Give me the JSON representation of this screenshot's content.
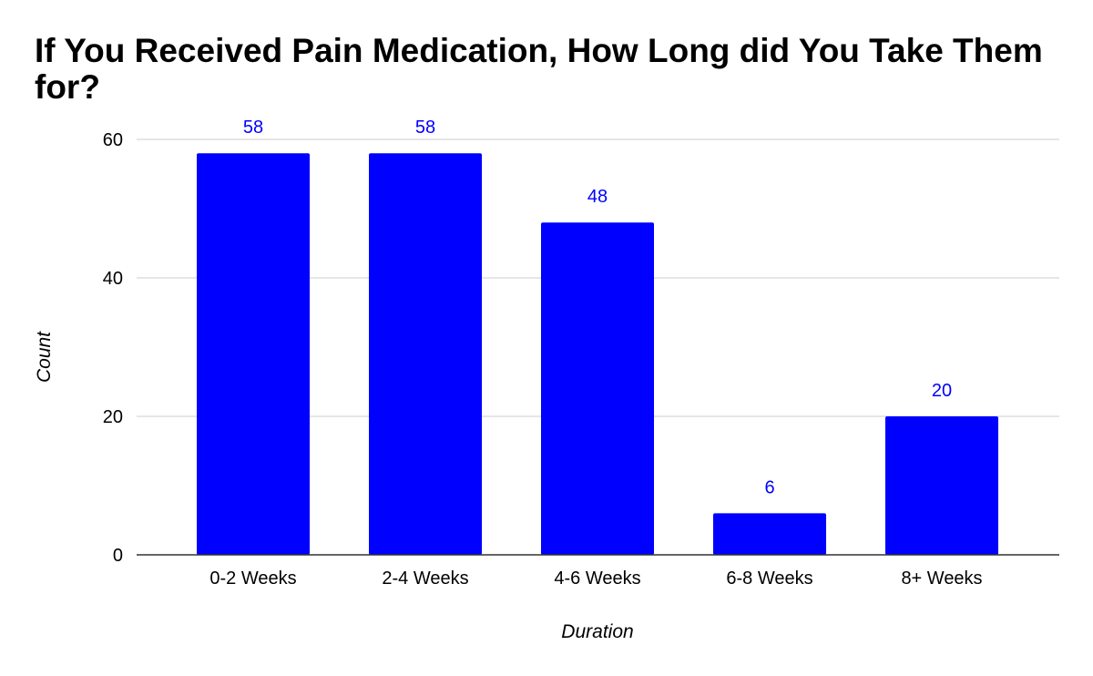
{
  "chart_data": {
    "type": "bar",
    "title": "If You Received Pain Medication, How Long did You Take Them for?",
    "xlabel": "Duration",
    "ylabel": "Count",
    "categories": [
      "0-2 Weeks",
      "2-4 Weeks",
      "4-6 Weeks",
      "6-8 Weeks",
      "8+ Weeks"
    ],
    "values": [
      58,
      58,
      48,
      6,
      20
    ],
    "data_labels": [
      "58",
      "58",
      "48",
      "6",
      "20"
    ],
    "ylim": [
      0,
      60
    ],
    "yticks": [
      0,
      20,
      40,
      60
    ],
    "ytick_labels": [
      "0",
      "20",
      "40",
      "60"
    ],
    "grid": true,
    "legend": "none",
    "colors": {
      "bar": "#0000ff",
      "data_label": "#0000ff",
      "grid": "#cccccc",
      "axis": "#333333"
    }
  }
}
